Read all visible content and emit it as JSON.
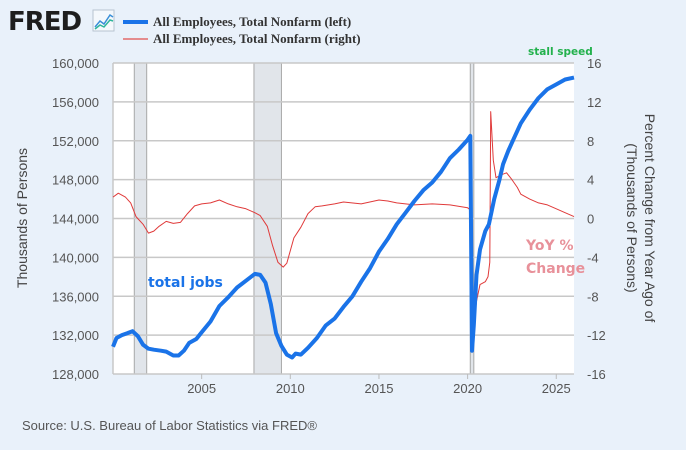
{
  "header": {
    "logo_text": "FRED",
    "legend": [
      {
        "label": "All Employees, Total Nonfarm (left)",
        "color": "#1a73e8"
      },
      {
        "label": "All Employees, Total Nonfarm (right)",
        "color": "#e26b6b"
      }
    ]
  },
  "source": "Source: U.S. Bureau of Labor Statistics via FRED®",
  "chart_data": {
    "type": "line",
    "xlabel": "",
    "ylabel_left": "Thousands of Persons",
    "ylabel_right_line1": "Percent Change from Year Ago of",
    "ylabel_right_line2": "(Thousands of Persons)",
    "xlim": [
      2000.0,
      2026.0
    ],
    "ylim_left": [
      128000,
      160000
    ],
    "ylim_right": [
      -16,
      16
    ],
    "grid": true,
    "x_ticks": [
      "2005",
      "2010",
      "2015",
      "2020",
      "2025"
    ],
    "y_ticks_left": [
      "128,000",
      "132,000",
      "136,000",
      "140,000",
      "144,000",
      "148,000",
      "152,000",
      "156,000",
      "160,000"
    ],
    "y_ticks_right": [
      "-16",
      "-12",
      "-8",
      "-4",
      "0",
      "4",
      "8",
      "12",
      "16"
    ],
    "recessions": [
      [
        2001.2,
        2001.9
      ],
      [
        2007.95,
        2009.5
      ],
      [
        2020.15,
        2020.35
      ]
    ],
    "annotations": [
      {
        "text": "stall speed",
        "color": "#22b14c"
      },
      {
        "text": "total jobs",
        "color": "#1a73e8"
      },
      {
        "text": "YoY %",
        "color": "#e8919a"
      },
      {
        "text": "Change",
        "color": "#e8919a"
      }
    ],
    "series": [
      {
        "name": "All Employees, Total Nonfarm (left)",
        "axis": "left",
        "color": "#1a73e8",
        "x": [
          2000.0,
          2000.2,
          2000.5,
          2000.8,
          2001.1,
          2001.4,
          2001.7,
          2002.0,
          2002.3,
          2002.7,
          2003.0,
          2003.4,
          2003.7,
          2004.0,
          2004.3,
          2004.7,
          2005.0,
          2005.5,
          2006.0,
          2006.5,
          2007.0,
          2007.5,
          2008.0,
          2008.3,
          2008.6,
          2008.9,
          2009.2,
          2009.5,
          2009.8,
          2010.1,
          2010.3,
          2010.6,
          2011.0,
          2011.5,
          2012.0,
          2012.5,
          2013.0,
          2013.5,
          2014.0,
          2014.5,
          2015.0,
          2015.5,
          2016.0,
          2016.5,
          2017.0,
          2017.5,
          2018.0,
          2018.5,
          2019.0,
          2019.5,
          2020.0,
          2020.15,
          2020.25,
          2020.35,
          2020.5,
          2020.7,
          2021.0,
          2021.2,
          2021.5,
          2021.8,
          2022.0,
          2022.3,
          2022.6,
          2023.0,
          2023.5,
          2024.0,
          2024.5,
          2025.0,
          2025.5,
          2026.0
        ],
        "values": [
          130800,
          131700,
          132000,
          132200,
          132400,
          131900,
          131000,
          130600,
          130500,
          130400,
          130300,
          129900,
          129900,
          130400,
          131200,
          131600,
          132300,
          133400,
          135000,
          135900,
          136900,
          137600,
          138300,
          138200,
          137400,
          135200,
          132200,
          130900,
          130000,
          129700,
          130100,
          130000,
          130700,
          131700,
          133000,
          133700,
          134900,
          136000,
          137500,
          138900,
          140600,
          141900,
          143400,
          144600,
          145800,
          146900,
          147700,
          148800,
          150200,
          151100,
          152100,
          152500,
          130400,
          133000,
          138200,
          140800,
          142700,
          143400,
          146000,
          148000,
          149600,
          151000,
          152200,
          153800,
          155200,
          156400,
          157300,
          157800,
          158300,
          158500
        ]
      },
      {
        "name": "All Employees, Total Nonfarm (right)",
        "axis": "right",
        "color": "#e03a3a",
        "x": [
          2000.0,
          2000.3,
          2000.7,
          2001.0,
          2001.3,
          2001.7,
          2002.0,
          2002.3,
          2002.6,
          2003.0,
          2003.4,
          2003.8,
          2004.2,
          2004.6,
          2005.0,
          2005.5,
          2006.0,
          2006.5,
          2007.0,
          2007.5,
          2008.0,
          2008.3,
          2008.7,
          2009.0,
          2009.3,
          2009.6,
          2009.8,
          2010.2,
          2010.6,
          2011.0,
          2011.4,
          2011.8,
          2012.5,
          2013.0,
          2014.0,
          2015.0,
          2015.5,
          2016.0,
          2017.0,
          2018.0,
          2019.0,
          2020.0,
          2020.15,
          2020.25,
          2020.35,
          2020.5,
          2020.7,
          2021.0,
          2021.15,
          2021.25,
          2021.3,
          2021.45,
          2021.6,
          2021.9,
          2022.2,
          2022.5,
          2022.8,
          2023.0,
          2023.5,
          2024.0,
          2024.5,
          2025.0,
          2025.5,
          2026.0
        ],
        "values": [
          2.2,
          2.6,
          2.2,
          1.6,
          0.2,
          -0.6,
          -1.5,
          -1.3,
          -0.8,
          -0.3,
          -0.5,
          -0.4,
          0.5,
          1.3,
          1.5,
          1.6,
          1.9,
          1.5,
          1.2,
          1.0,
          0.6,
          0.3,
          -0.8,
          -2.8,
          -4.5,
          -5.0,
          -4.6,
          -2.0,
          -0.9,
          0.5,
          1.2,
          1.3,
          1.5,
          1.7,
          1.5,
          1.9,
          1.8,
          1.6,
          1.4,
          1.5,
          1.4,
          1.1,
          0.9,
          -13.5,
          -11.0,
          -8.5,
          -6.8,
          -6.5,
          -6.0,
          -4.5,
          11.0,
          6.0,
          4.2,
          4.5,
          4.7,
          4.0,
          3.2,
          2.5,
          2.0,
          1.6,
          1.4,
          1.0,
          0.6,
          0.2
        ]
      }
    ]
  }
}
